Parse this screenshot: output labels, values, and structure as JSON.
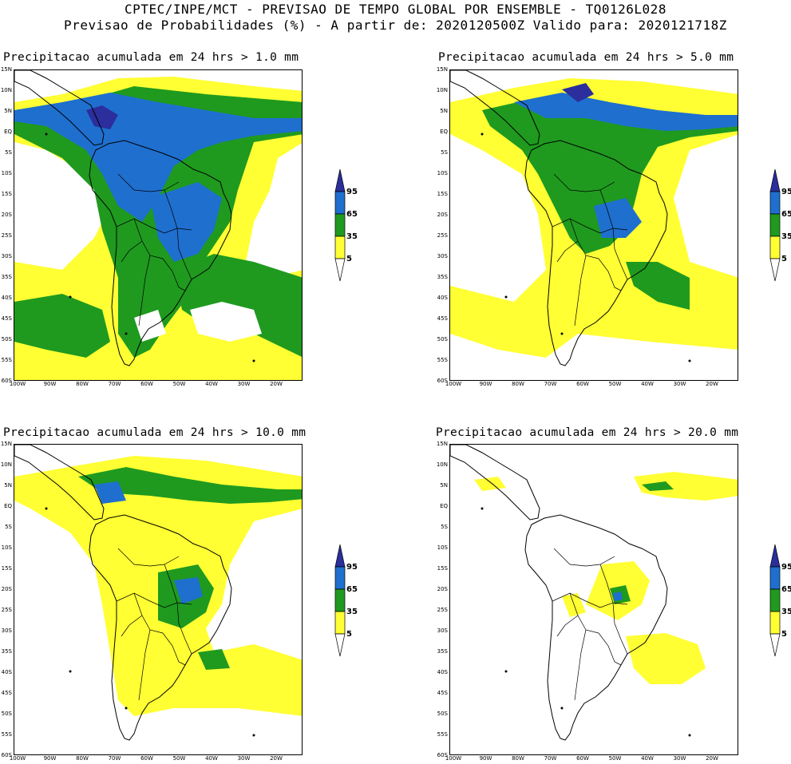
{
  "header": {
    "line1": "CPTEC/INPE/MCT - PREVISAO DE TEMPO GLOBAL POR ENSEMBLE - TQ0126L028",
    "line2": "Previsao de Probabilidades (%) -  A partir de: 2020120500Z  Valido para: 2020121718Z"
  },
  "panels": [
    {
      "title": "Precipitacao acumulada em 24 hrs > 1.0 mm"
    },
    {
      "title": "Precipitacao acumulada em 24 hrs > 5.0 mm"
    },
    {
      "title": "Precipitacao acumulada em 24 hrs > 10.0 mm"
    },
    {
      "title": "Precipitacao acumulada em 24 hrs > 20.0 mm"
    }
  ],
  "latitude_labels": [
    "15N",
    "10N",
    "5N",
    "EQ",
    "5S",
    "10S",
    "15S",
    "20S",
    "25S",
    "30S",
    "35S",
    "40S",
    "45S",
    "50S",
    "55S",
    "60S"
  ],
  "longitude_labels": [
    "100W",
    "90W",
    "80W",
    "70W",
    "60W",
    "50W",
    "40W",
    "30W",
    "20W"
  ],
  "colorbar": {
    "labels": [
      "95",
      "65",
      "35",
      "5"
    ],
    "colors": {
      "navy": "#2b2e9c",
      "blue": "#1f6fcf",
      "green": "#1f9a1f",
      "yellow": "#ffff33",
      "white": "#ffffff"
    }
  }
}
